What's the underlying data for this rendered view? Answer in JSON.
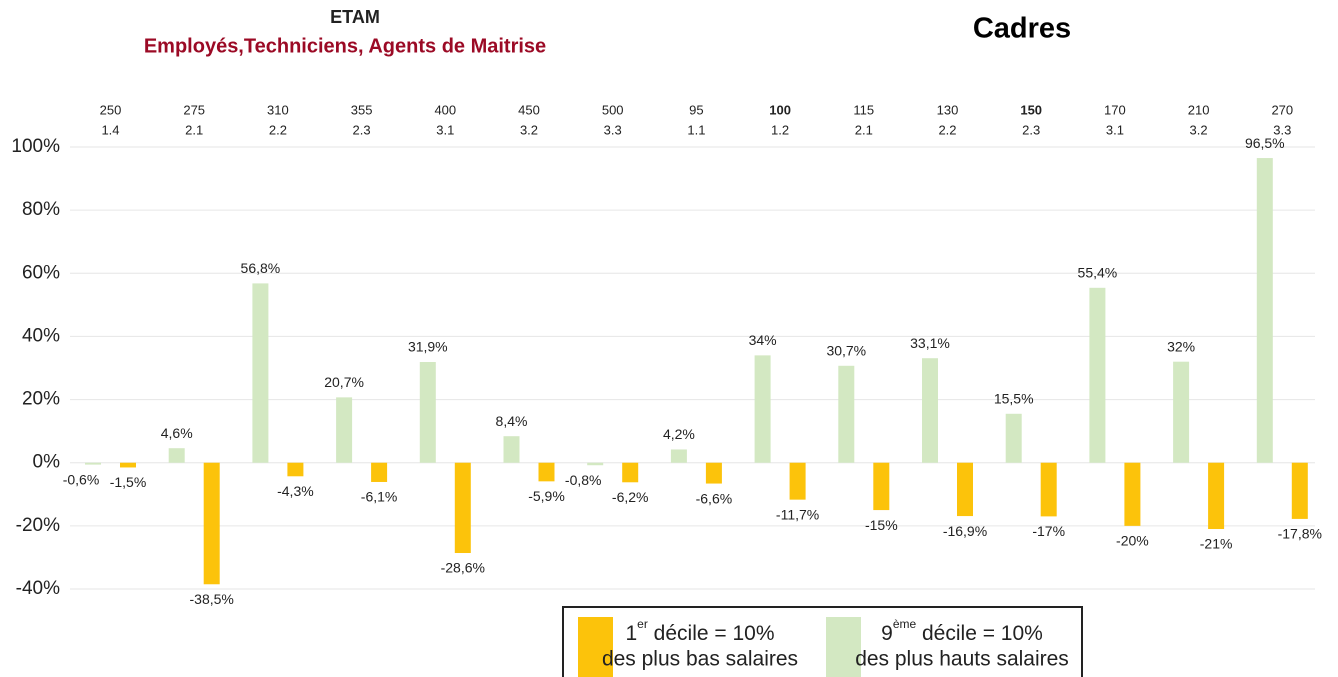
{
  "chart_data": {
    "type": "bar",
    "title": "ETAM",
    "subtitle": "Employés,Techniciens, Agents de Maitrise",
    "title2": "Cadres",
    "categories": [
      {
        "label": "250",
        "sub": "1.4"
      },
      {
        "label": "275",
        "sub": "2.1"
      },
      {
        "label": "310",
        "sub": "2.2"
      },
      {
        "label": "355",
        "sub": "2.3"
      },
      {
        "label": "400",
        "sub": "3.1"
      },
      {
        "label": "450",
        "sub": "3.2"
      },
      {
        "label": "500",
        "sub": "3.3"
      },
      {
        "label": "95",
        "sub": "1.1"
      },
      {
        "label": "100",
        "sub": "1.2",
        "bold": true
      },
      {
        "label": "115",
        "sub": "2.1"
      },
      {
        "label": "130",
        "sub": "2.2"
      },
      {
        "label": "150",
        "sub": "2.3",
        "bold": true
      },
      {
        "label": "170",
        "sub": "3.1"
      },
      {
        "label": "210",
        "sub": "3.2"
      },
      {
        "label": "270",
        "sub": "3.3"
      }
    ],
    "series": [
      {
        "legend": {
          "num": "9",
          "sup": "ème",
          "text": " décile = 10%",
          "line2": "des plus hauts salaires"
        },
        "color": "#d3e8c2",
        "values": [
          -0.6,
          4.6,
          56.8,
          20.7,
          31.9,
          8.4,
          -0.8,
          4.2,
          34,
          30.7,
          33.1,
          15.5,
          55.4,
          32,
          96.5
        ],
        "value_labels": [
          "-0,6%",
          "4,6%",
          "56,8%",
          "20,7%",
          "31,9%",
          "8,4%",
          "-0,8%",
          "4,2%",
          "34%",
          "30,7%",
          "33,1%",
          "15,5%",
          "55,4%",
          "32%",
          "96,5%"
        ]
      },
      {
        "legend": {
          "num": "1",
          "sup": "er",
          "text": " décile = 10%",
          "line2": "des plus bas salaires"
        },
        "color": "#fcc30b",
        "values": [
          -1.5,
          -38.5,
          -4.3,
          -6.1,
          -28.6,
          -5.9,
          -6.2,
          -6.6,
          -11.7,
          -15,
          -16.9,
          -17,
          -20,
          -21,
          -17.8
        ],
        "value_labels": [
          "-1,5%",
          "-38,5%",
          "-4,3%",
          "-6,1%",
          "-28,6%",
          "-5,9%",
          "-6,2%",
          "-6,6%",
          "-11,7%",
          "-15%",
          "-16,9%",
          "-17%",
          "-20%",
          "-21%",
          "-17,8%"
        ]
      }
    ],
    "ylim": [
      -40,
      100
    ],
    "yticks": [
      {
        "value": -40,
        "label": "-40%"
      },
      {
        "value": -20,
        "label": "-20%"
      },
      {
        "value": 0,
        "label": "0%"
      },
      {
        "value": 20,
        "label": "20%"
      },
      {
        "value": 40,
        "label": "40%"
      },
      {
        "value": 60,
        "label": "60%"
      },
      {
        "value": 80,
        "label": "80%"
      },
      {
        "value": 100,
        "label": "100%"
      }
    ],
    "grid": true
  }
}
